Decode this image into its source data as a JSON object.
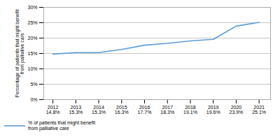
{
  "chart_data": {
    "type": "line",
    "x": [
      2012,
      2013,
      2014,
      2015,
      2016,
      2017,
      2018,
      2019,
      2020,
      2021
    ],
    "series": [
      {
        "name": "% of patients that might benefit\nfrom palliative care",
        "color": "#5B9BD5",
        "values": [
          14.8,
          15.3,
          15.3,
          16.3,
          17.7,
          18.3,
          19.1,
          19.6,
          23.9,
          25.1
        ],
        "value_labels": [
          "14.8%",
          "15.3%",
          "15.3%",
          "16.3%",
          "17.7%",
          "18.3%",
          "19.1%",
          "19.6%",
          "23.9%",
          "25.1%"
        ]
      }
    ],
    "xlim": [
      2011.6,
      2021.5
    ],
    "xticks": [
      2012,
      2013,
      2014,
      2015,
      2016,
      2017,
      2018,
      2019,
      2020,
      2021
    ],
    "ylim": [
      0,
      30
    ],
    "yticks": [
      {
        "value": 0,
        "label": "0%"
      },
      {
        "value": 5,
        "label": "5%"
      },
      {
        "value": 10,
        "label": "10%"
      },
      {
        "value": 15,
        "label": "15%"
      },
      {
        "value": 20,
        "label": "20%"
      },
      {
        "value": 25,
        "label": "25%"
      },
      {
        "value": 30,
        "label": "30%"
      }
    ],
    "ylabel": "Percentage of patients that might benefit\nfrom palliative care",
    "grid": true,
    "data_labels": true,
    "legend": "bottom left"
  }
}
